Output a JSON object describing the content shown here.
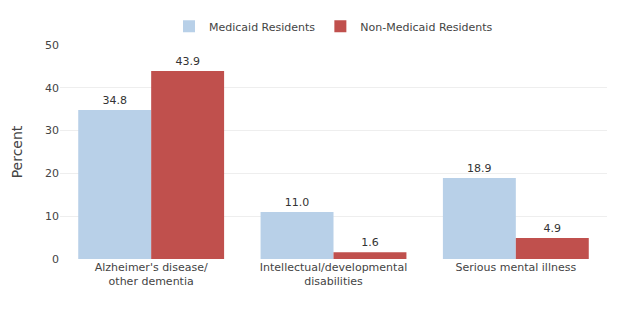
{
  "chart_data": {
    "type": "bar",
    "categories": [
      "Alzheimer's disease/\nother dementia",
      "Intellectual/developmental\ndisabilities",
      "Serious mental illness"
    ],
    "series": [
      {
        "name": "Medicaid Residents",
        "color": "#b8d0e8",
        "values": [
          34.8,
          11.0,
          18.9
        ],
        "value_labels": [
          "34.8",
          "11.0",
          "18.9"
        ]
      },
      {
        "name": "Non-Medicaid Residents",
        "color": "#c0504d",
        "values": [
          43.9,
          1.6,
          4.9
        ],
        "value_labels": [
          "43.9",
          "1.6",
          "4.9"
        ]
      }
    ],
    "ylabel": "Percent",
    "ylim": [
      0,
      50
    ],
    "yticks": [
      0,
      10,
      20,
      30,
      40,
      50
    ],
    "grid": true,
    "legend": "top",
    "data_labels": true
  }
}
